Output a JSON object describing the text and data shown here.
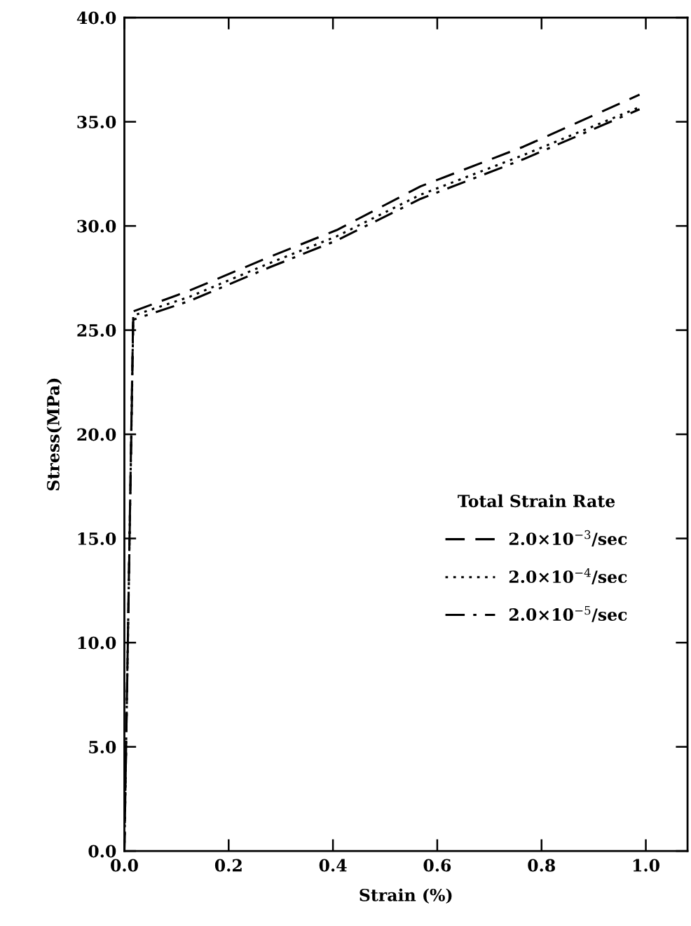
{
  "chart_data": {
    "type": "line",
    "xlabel": "Strain (%)",
    "ylabel": "Stress(MPa)",
    "legend_title": "Total Strain Rate",
    "legend": "right",
    "grid": false,
    "xlim": [
      0,
      1.08
    ],
    "ylim": [
      0,
      40
    ],
    "xticks": [
      {
        "value": 0,
        "label": "0.0"
      },
      0.2,
      0.4,
      0.6,
      0.8,
      {
        "value": 1,
        "label": "1.0"
      }
    ],
    "yticks": [
      {
        "value": 0,
        "label": "0.0"
      },
      {
        "value": 5,
        "label": "5.0"
      },
      {
        "value": 10,
        "label": "10.0"
      },
      {
        "value": 15,
        "label": "15.0"
      },
      {
        "value": 20,
        "label": "20.0"
      },
      {
        "value": 25,
        "label": "25.0"
      },
      {
        "value": 30,
        "label": "30.0"
      },
      {
        "value": 35,
        "label": "35.0"
      },
      {
        "value": 40,
        "label": "40.0"
      }
    ],
    "series": [
      {
        "name": "2.0×10$^{−3}$/sec",
        "color": "#000000",
        "line_style": "dashed",
        "x": [
          0,
          0.017,
          0.125,
          0.277,
          0.407,
          0.568,
          0.765,
          0.988
        ],
        "values": [
          0,
          25.9,
          26.9,
          28.5,
          29.8,
          31.9,
          33.8,
          36.3
        ]
      },
      {
        "name": "2.0×10$^{−4}$/sec",
        "color": "#000000",
        "line_style": "dotted",
        "x": [
          0,
          0.017,
          0.125,
          0.277,
          0.407,
          0.568,
          0.765,
          0.988
        ],
        "values": [
          0,
          25.7,
          26.6,
          28.2,
          29.5,
          31.5,
          33.4,
          35.7
        ]
      },
      {
        "name": "2.0×10$^{−5}$/sec",
        "color": "#000000",
        "line_style": "dashdot",
        "x": [
          0,
          0.017,
          0.125,
          0.277,
          0.407,
          0.568,
          0.765,
          0.988
        ],
        "values": [
          0,
          25.5,
          26.4,
          28.0,
          29.3,
          31.3,
          33.2,
          35.6
        ]
      }
    ]
  }
}
